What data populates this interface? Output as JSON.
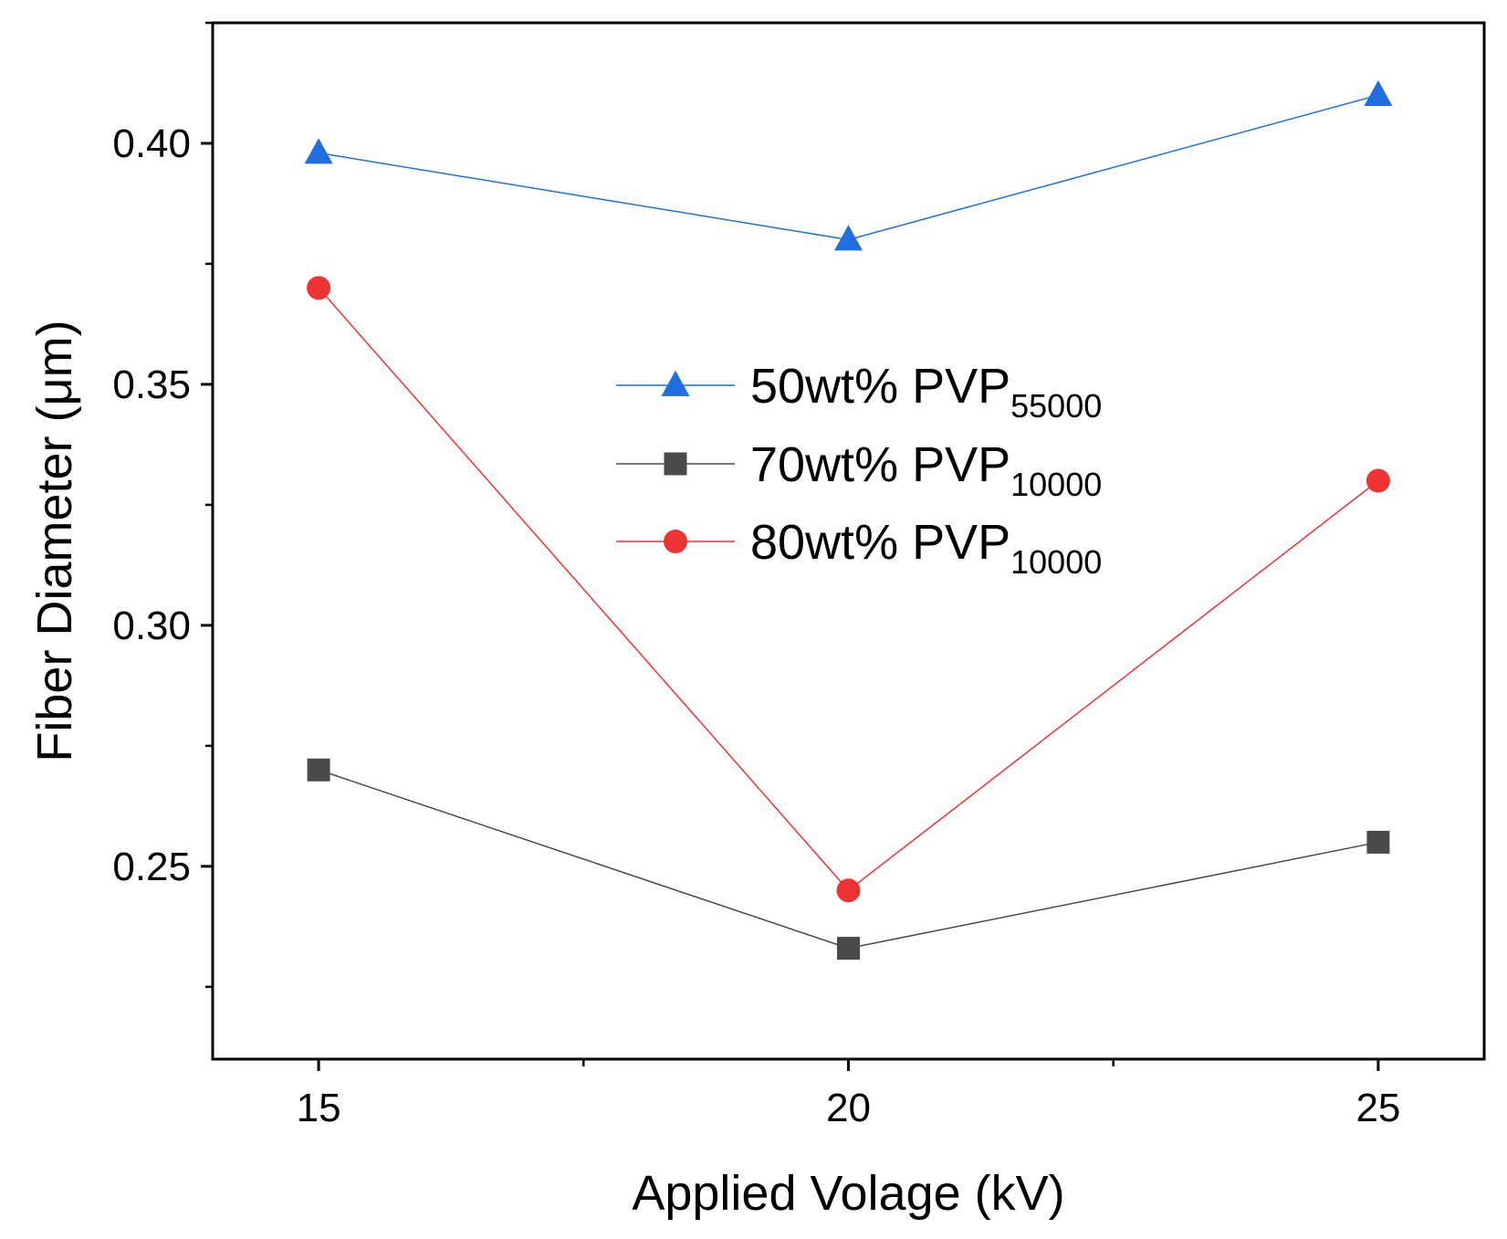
{
  "chart_data": {
    "type": "line",
    "xlabel": "Applied Volage (kV)",
    "ylabel": "Fiber Diameter (μm)",
    "x": [
      15,
      20,
      25
    ],
    "xlim": [
      14,
      26
    ],
    "ylim": [
      0.21,
      0.425
    ],
    "xticks": [
      15,
      20,
      25
    ],
    "xtick_labels": [
      "15",
      "20",
      "25"
    ],
    "yticks": [
      0.25,
      0.3,
      0.35,
      0.4
    ],
    "ytick_labels": [
      "0.25",
      "0.30",
      "0.35",
      "0.40"
    ],
    "grid": false,
    "legend_position": "center-right",
    "series": [
      {
        "name": "50wt% PVP",
        "subscript": "55000",
        "marker": "triangle",
        "color": "#1f6fe0",
        "values": [
          0.398,
          0.38,
          0.41
        ]
      },
      {
        "name": "70wt% PVP",
        "subscript": "10000",
        "marker": "square",
        "color": "#4a4a4a",
        "values": [
          0.27,
          0.233,
          0.255
        ]
      },
      {
        "name": "80wt% PVP",
        "subscript": "10000",
        "marker": "circle",
        "color": "#ee3333",
        "values": [
          0.37,
          0.245,
          0.33
        ]
      }
    ]
  }
}
